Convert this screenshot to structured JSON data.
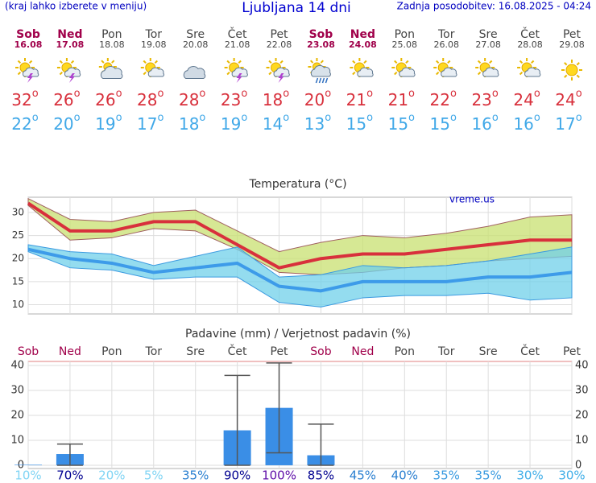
{
  "header": {
    "note": "(kraj lahko izberete v meniju)",
    "title": "Ljubljana 14 dni",
    "updated": "Zadnja posodobitev: 16.08.2025 - 04:24"
  },
  "forecast": {
    "temp_unit": "o",
    "days": [
      {
        "name": "Sob",
        "date": "16.08",
        "weekend": true,
        "max": 32,
        "min": 22
      },
      {
        "name": "Ned",
        "date": "17.08",
        "weekend": true,
        "max": 26,
        "min": 20
      },
      {
        "name": "Pon",
        "date": "18.08",
        "weekend": false,
        "max": 26,
        "min": 19
      },
      {
        "name": "Tor",
        "date": "19.08",
        "weekend": false,
        "max": 28,
        "min": 17
      },
      {
        "name": "Sre",
        "date": "20.08",
        "weekend": false,
        "max": 28,
        "min": 18
      },
      {
        "name": "Čet",
        "date": "21.08",
        "weekend": false,
        "max": 23,
        "min": 19
      },
      {
        "name": "Pet",
        "date": "22.08",
        "weekend": false,
        "max": 18,
        "min": 14
      },
      {
        "name": "Sob",
        "date": "23.08",
        "weekend": true,
        "max": 20,
        "min": 13
      },
      {
        "name": "Ned",
        "date": "24.08",
        "weekend": true,
        "max": 21,
        "min": 15
      },
      {
        "name": "Pon",
        "date": "25.08",
        "weekend": false,
        "max": 21,
        "min": 15
      },
      {
        "name": "Tor",
        "date": "26.08",
        "weekend": false,
        "max": 22,
        "min": 15
      },
      {
        "name": "Sre",
        "date": "27.08",
        "weekend": false,
        "max": 23,
        "min": 16
      },
      {
        "name": "Čet",
        "date": "28.08",
        "weekend": false,
        "max": 24,
        "min": 16
      },
      {
        "name": "Pet",
        "date": "29.08",
        "weekend": false,
        "max": 24,
        "min": 17
      }
    ]
  },
  "chart_data": [
    {
      "type": "line",
      "title": "Temperatura (°C)",
      "watermark": "vreme.us",
      "categories": [
        null,
        null,
        null,
        null,
        null,
        null,
        null,
        null,
        null,
        null,
        null,
        null,
        null,
        null
      ],
      "ylim": [
        8,
        33.3
      ],
      "yticks": [
        10,
        15,
        20,
        25,
        30
      ],
      "grid": true,
      "series": [
        {
          "color": "#d8303c",
          "values": [
            32,
            26,
            26,
            28,
            28,
            23,
            18,
            20,
            21,
            21,
            22,
            23,
            24,
            24
          ]
        },
        {
          "color": "#3d9be9",
          "values": [
            22,
            20,
            19,
            17,
            18,
            19,
            14,
            13,
            15,
            15,
            15,
            16,
            16,
            17
          ]
        }
      ],
      "bands": [
        {
          "color": "#c8e070",
          "upper": [
            33,
            28.5,
            28,
            30,
            30.5,
            26,
            21.5,
            23.5,
            25,
            24.5,
            25.5,
            27,
            29,
            29.5
          ],
          "lower": [
            31.5,
            24,
            24.5,
            26.5,
            26,
            22,
            17,
            16.5,
            17,
            18,
            18.5,
            19.5,
            20,
            20.5
          ]
        },
        {
          "color": "#70d0ea",
          "upper": [
            23,
            21.5,
            21,
            18.5,
            20.5,
            22.5,
            16,
            16.5,
            18.5,
            18,
            18.5,
            19.5,
            21,
            22.5
          ],
          "lower": [
            21.5,
            18,
            17.5,
            15.5,
            16,
            16,
            10.5,
            9.5,
            11.5,
            12,
            12,
            12.5,
            11,
            11.5
          ]
        }
      ]
    },
    {
      "type": "bar",
      "title": "Padavine (mm) / Verjetnost padavin (%)",
      "categories": [
        "Sob",
        "Ned",
        "Pon",
        "Tor",
        "Sre",
        "Čet",
        "Pet",
        "Sob",
        "Ned",
        "Pon",
        "Tor",
        "Sre",
        "Čet",
        "Pet"
      ],
      "category_weekend": [
        true,
        true,
        false,
        false,
        false,
        false,
        false,
        true,
        true,
        false,
        false,
        false,
        false,
        false
      ],
      "ylim": [
        -1.3,
        41.6
      ],
      "yticks": [
        0,
        10,
        20,
        30,
        40
      ],
      "grid": true,
      "color": "#3a8ee6",
      "values": [
        0.2,
        4.5,
        0,
        0,
        0,
        14,
        23,
        4,
        0,
        0,
        0,
        0,
        0,
        0
      ],
      "range_low": [
        null,
        0,
        null,
        null,
        null,
        0,
        5,
        0,
        null,
        null,
        null,
        null,
        null,
        null
      ],
      "range_high": [
        null,
        8.5,
        null,
        null,
        null,
        36,
        41,
        16.5,
        null,
        null,
        null,
        null,
        null,
        null
      ],
      "probability": [
        10,
        70,
        20,
        5,
        35,
        90,
        100,
        85,
        45,
        40,
        35,
        35,
        30,
        30
      ],
      "probability_labels": [
        "10%",
        "70%",
        "20%",
        "5%",
        "35%",
        "90%",
        "100%",
        "85%",
        "45%",
        "40%",
        "35%",
        "35%",
        "30%",
        "30%"
      ],
      "probability_colors": [
        "#80d4f4",
        "#000090",
        "#80d4f4",
        "#80d4f4",
        "#2a7fd0",
        "#000090",
        "#6010a8",
        "#000090",
        "#2a7fd0",
        "#2a7fd0",
        "#3a9ae0",
        "#3a9ae0",
        "#40aee8",
        "#40aee8"
      ]
    }
  ]
}
